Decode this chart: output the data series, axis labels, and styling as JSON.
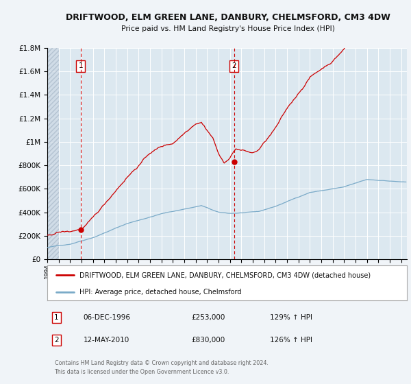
{
  "title": "DRIFTWOOD, ELM GREEN LANE, DANBURY, CHELMSFORD, CM3 4DW",
  "subtitle": "Price paid vs. HM Land Registry's House Price Index (HPI)",
  "legend_label_red": "DRIFTWOOD, ELM GREEN LANE, DANBURY, CHELMSFORD, CM3 4DW (detached house)",
  "legend_label_blue": "HPI: Average price, detached house, Chelmsford",
  "sale1_date": "06-DEC-1996",
  "sale1_price": "£253,000",
  "sale1_hpi": "129% ↑ HPI",
  "sale2_date": "12-MAY-2010",
  "sale2_price": "£830,000",
  "sale2_hpi": "126% ↑ HPI",
  "footer": "Contains HM Land Registry data © Crown copyright and database right 2024.\nThis data is licensed under the Open Government Licence v3.0.",
  "bg_color": "#f0f4f8",
  "plot_bg_color": "#dce8f0",
  "grid_color": "#c8d8e8",
  "hatch_color": "#c0ccd8",
  "red_line_color": "#cc0000",
  "blue_line_color": "#7aaac8",
  "sale1_year": 1996.92,
  "sale1_value": 253000,
  "sale2_year": 2010.36,
  "sale2_value": 830000,
  "xmin": 1994.0,
  "xmax": 2025.5,
  "ymin": 0,
  "ymax": 1800000,
  "ytick_interval": 200000
}
